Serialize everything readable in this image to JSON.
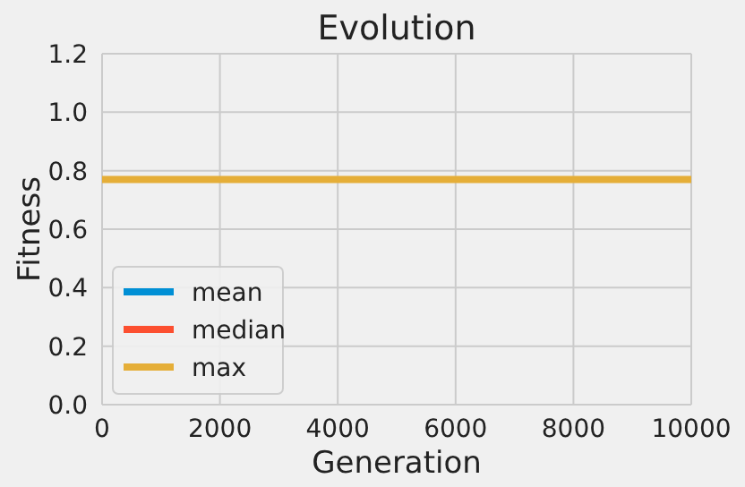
{
  "chart_data": {
    "type": "line",
    "title": "Evolution",
    "xlabel": "Generation",
    "ylabel": "Fitness",
    "xlim": [
      0,
      10000
    ],
    "xticks": [
      0,
      2000,
      4000,
      6000,
      8000,
      10000
    ],
    "ylim": [
      0,
      1.2
    ],
    "yticks": [
      {
        "value": 0,
        "label": "0.0"
      },
      {
        "value": 0.2,
        "label": "0.2"
      },
      {
        "value": 0.4,
        "label": "0.4"
      },
      {
        "value": 0.6,
        "label": "0.6"
      },
      {
        "value": 0.8,
        "label": "0.8"
      },
      {
        "value": 1,
        "label": "1.0"
      },
      {
        "value": 1.2,
        "label": "1.2"
      }
    ],
    "grid": true,
    "legend": "bottom left",
    "series": [
      {
        "name": "mean",
        "color": "#008fd5"
      },
      {
        "name": "median",
        "color": "#fc4f30"
      },
      {
        "name": "max",
        "color": "#e5ae38",
        "x": [
          0,
          10000
        ],
        "values": [
          0.77,
          0.77
        ]
      }
    ]
  }
}
